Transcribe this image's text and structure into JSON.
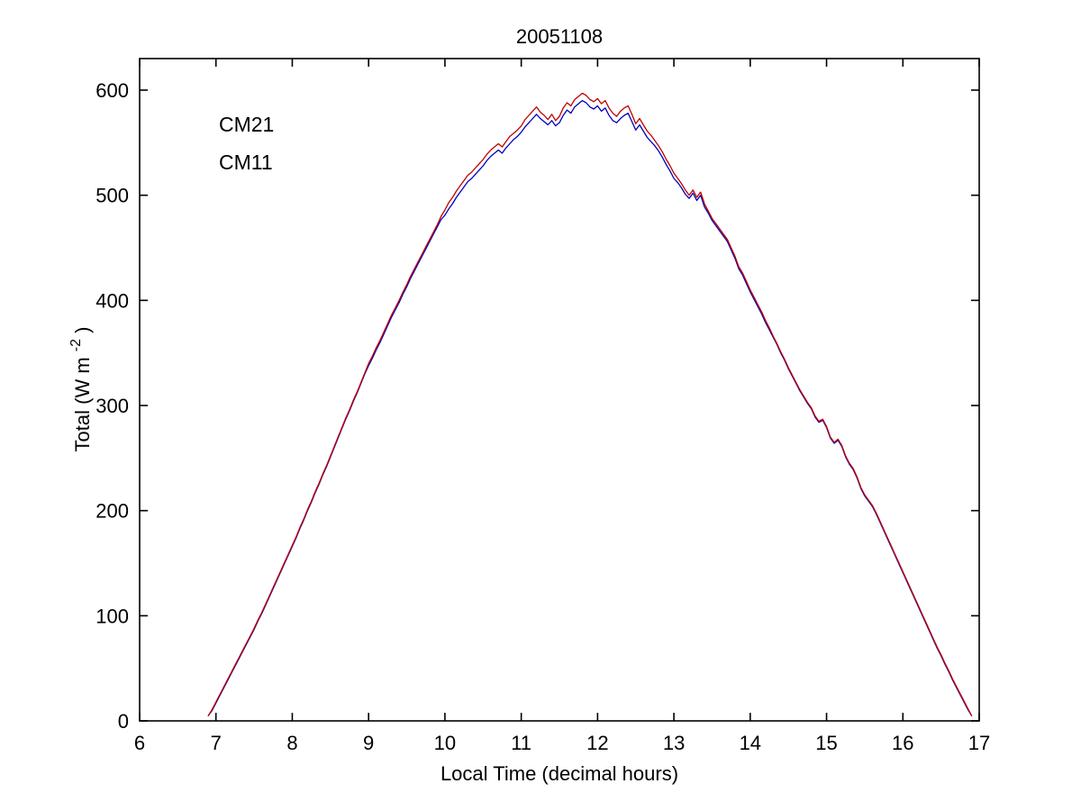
{
  "chart_data": {
    "type": "line",
    "title": "20051108",
    "xlabel": "Local Time (decimal hours)",
    "ylabel": {
      "prefix": "Total (W m",
      "sup": "-2",
      "suffix": ")"
    },
    "xlim": [
      6,
      17
    ],
    "ylim": [
      0,
      630
    ],
    "xticks": [
      6,
      7,
      8,
      9,
      10,
      11,
      12,
      13,
      14,
      15,
      16,
      17
    ],
    "yticks": [
      0,
      100,
      200,
      300,
      400,
      500,
      600
    ],
    "grid": false,
    "legend_position": "upper-left-inside-text-labels",
    "axis_color": "#000000",
    "background_color": "#ffffff",
    "x": [
      6.9,
      6.95,
      7.0,
      7.05,
      7.1,
      7.15,
      7.2,
      7.25,
      7.3,
      7.35,
      7.4,
      7.45,
      7.5,
      7.55,
      7.6,
      7.65,
      7.7,
      7.75,
      7.8,
      7.85,
      7.9,
      7.95,
      8.0,
      8.05,
      8.1,
      8.15,
      8.2,
      8.25,
      8.3,
      8.35,
      8.4,
      8.45,
      8.5,
      8.55,
      8.6,
      8.65,
      8.7,
      8.75,
      8.8,
      8.85,
      8.9,
      8.95,
      9.0,
      9.05,
      9.1,
      9.15,
      9.2,
      9.25,
      9.3,
      9.35,
      9.4,
      9.45,
      9.5,
      9.55,
      9.6,
      9.65,
      9.7,
      9.75,
      9.8,
      9.85,
      9.9,
      9.95,
      10.0,
      10.05,
      10.1,
      10.15,
      10.2,
      10.25,
      10.3,
      10.35,
      10.4,
      10.45,
      10.5,
      10.55,
      10.6,
      10.65,
      10.7,
      10.75,
      10.8,
      10.85,
      10.9,
      10.95,
      11.0,
      11.05,
      11.1,
      11.15,
      11.2,
      11.25,
      11.3,
      11.35,
      11.4,
      11.45,
      11.5,
      11.55,
      11.6,
      11.65,
      11.7,
      11.75,
      11.8,
      11.85,
      11.9,
      11.95,
      12.0,
      12.05,
      12.1,
      12.15,
      12.2,
      12.25,
      12.3,
      12.35,
      12.4,
      12.45,
      12.5,
      12.55,
      12.6,
      12.65,
      12.7,
      12.75,
      12.8,
      12.85,
      12.9,
      12.95,
      13.0,
      13.05,
      13.1,
      13.15,
      13.2,
      13.25,
      13.3,
      13.35,
      13.4,
      13.45,
      13.5,
      13.55,
      13.6,
      13.65,
      13.7,
      13.75,
      13.8,
      13.85,
      13.9,
      13.95,
      14.0,
      14.05,
      14.1,
      14.15,
      14.2,
      14.25,
      14.3,
      14.35,
      14.4,
      14.45,
      14.5,
      14.55,
      14.6,
      14.65,
      14.7,
      14.75,
      14.8,
      14.85,
      14.9,
      14.95,
      15.0,
      15.05,
      15.1,
      15.15,
      15.2,
      15.25,
      15.3,
      15.35,
      15.4,
      15.45,
      15.5,
      15.55,
      15.6,
      15.65,
      15.7,
      15.75,
      15.8,
      15.85,
      15.9,
      15.95,
      16.0,
      16.05,
      16.1,
      16.15,
      16.2,
      16.25,
      16.3,
      16.35,
      16.4,
      16.45,
      16.5,
      16.55,
      16.6,
      16.65,
      16.7,
      16.75,
      16.8,
      16.85,
      16.9
    ],
    "series": [
      {
        "name": "CM21",
        "color": "#0000bb",
        "values": [
          5,
          10,
          17,
          24,
          31,
          38,
          45,
          52,
          59,
          66,
          73,
          80,
          87,
          95,
          102,
          110,
          118,
          126,
          134,
          142,
          150,
          158,
          166,
          174,
          183,
          191,
          200,
          208,
          217,
          225,
          234,
          242,
          251,
          260,
          269,
          278,
          287,
          295,
          304,
          312,
          321,
          330,
          338,
          345,
          353,
          360,
          368,
          376,
          384,
          391,
          398,
          406,
          413,
          421,
          428,
          435,
          442,
          449,
          456,
          463,
          470,
          477,
          481,
          487,
          492,
          498,
          503,
          508,
          513,
          516,
          520,
          524,
          528,
          533,
          537,
          540,
          543,
          540,
          545,
          549,
          553,
          556,
          560,
          565,
          569,
          573,
          577,
          573,
          570,
          567,
          571,
          566,
          569,
          576,
          581,
          578,
          584,
          587,
          590,
          588,
          584,
          582,
          585,
          580,
          583,
          576,
          571,
          569,
          573,
          576,
          578,
          570,
          562,
          567,
          561,
          555,
          551,
          547,
          542,
          536,
          529,
          523,
          516,
          512,
          507,
          501,
          497,
          502,
          495,
          500,
          489,
          483,
          476,
          471,
          466,
          461,
          456,
          448,
          440,
          430,
          424,
          416,
          408,
          401,
          394,
          387,
          379,
          372,
          365,
          358,
          350,
          343,
          335,
          328,
          321,
          314,
          308,
          302,
          297,
          289,
          284,
          286,
          279,
          269,
          264,
          267,
          261,
          251,
          244,
          239,
          231,
          221,
          214,
          209,
          204,
          197,
          189,
          181,
          173,
          165,
          157,
          149,
          141,
          133,
          125,
          117,
          109,
          101,
          93,
          85,
          77,
          69,
          62,
          54,
          47,
          39,
          32,
          25,
          18,
          11,
          5
        ]
      },
      {
        "name": "CM11",
        "color": "#c00000",
        "values": [
          5,
          11,
          18,
          25,
          32,
          39,
          46,
          53,
          60,
          67,
          74,
          81,
          88,
          96,
          103,
          111,
          119,
          127,
          135,
          143,
          151,
          159,
          167,
          175,
          184,
          192,
          201,
          209,
          218,
          226,
          235,
          243,
          252,
          261,
          270,
          279,
          288,
          296,
          305,
          313,
          322,
          331,
          340,
          347,
          355,
          362,
          370,
          378,
          386,
          393,
          400,
          408,
          415,
          423,
          430,
          437,
          444,
          451,
          458,
          465,
          472,
          480,
          486,
          493,
          498,
          504,
          509,
          514,
          519,
          522,
          526,
          530,
          534,
          539,
          543,
          546,
          549,
          546,
          551,
          556,
          559,
          562,
          566,
          572,
          576,
          580,
          584,
          579,
          576,
          572,
          577,
          571,
          575,
          583,
          588,
          585,
          591,
          594,
          597,
          595,
          591,
          589,
          592,
          587,
          590,
          583,
          578,
          575,
          580,
          583,
          585,
          577,
          568,
          573,
          567,
          561,
          557,
          552,
          547,
          541,
          534,
          528,
          521,
          516,
          511,
          505,
          500,
          505,
          498,
          503,
          492,
          485,
          478,
          473,
          468,
          463,
          458,
          450,
          442,
          432,
          426,
          418,
          410,
          403,
          396,
          389,
          381,
          374,
          366,
          359,
          351,
          344,
          336,
          329,
          322,
          315,
          309,
          303,
          298,
          290,
          285,
          287,
          280,
          270,
          265,
          268,
          262,
          252,
          245,
          240,
          232,
          222,
          215,
          210,
          205,
          198,
          190,
          182,
          174,
          166,
          158,
          150,
          142,
          134,
          126,
          118,
          110,
          102,
          94,
          86,
          78,
          70,
          63,
          55,
          48,
          40,
          33,
          26,
          19,
          12,
          5
        ]
      }
    ],
    "legend": [
      {
        "label": "CM21",
        "color": "#0000bb"
      },
      {
        "label": "CM11",
        "color": "#c00000"
      }
    ]
  }
}
